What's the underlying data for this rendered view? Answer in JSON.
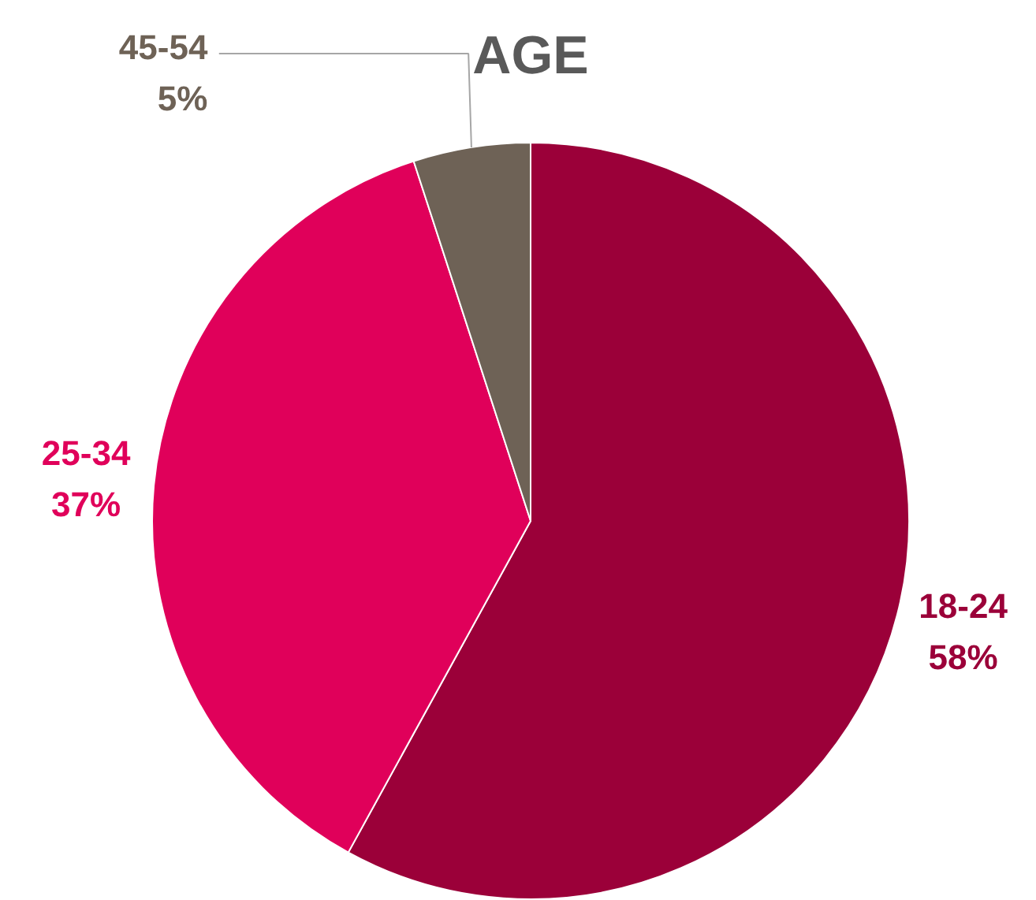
{
  "chart_data": {
    "type": "pie",
    "title": "AGE",
    "categories": [
      "18-24",
      "25-34",
      "45-54"
    ],
    "values": [
      58,
      37,
      5
    ],
    "colors": [
      "#9b0039",
      "#e0005a",
      "#6e6256"
    ],
    "value_labels": [
      "58%",
      "37%",
      "5%"
    ]
  }
}
